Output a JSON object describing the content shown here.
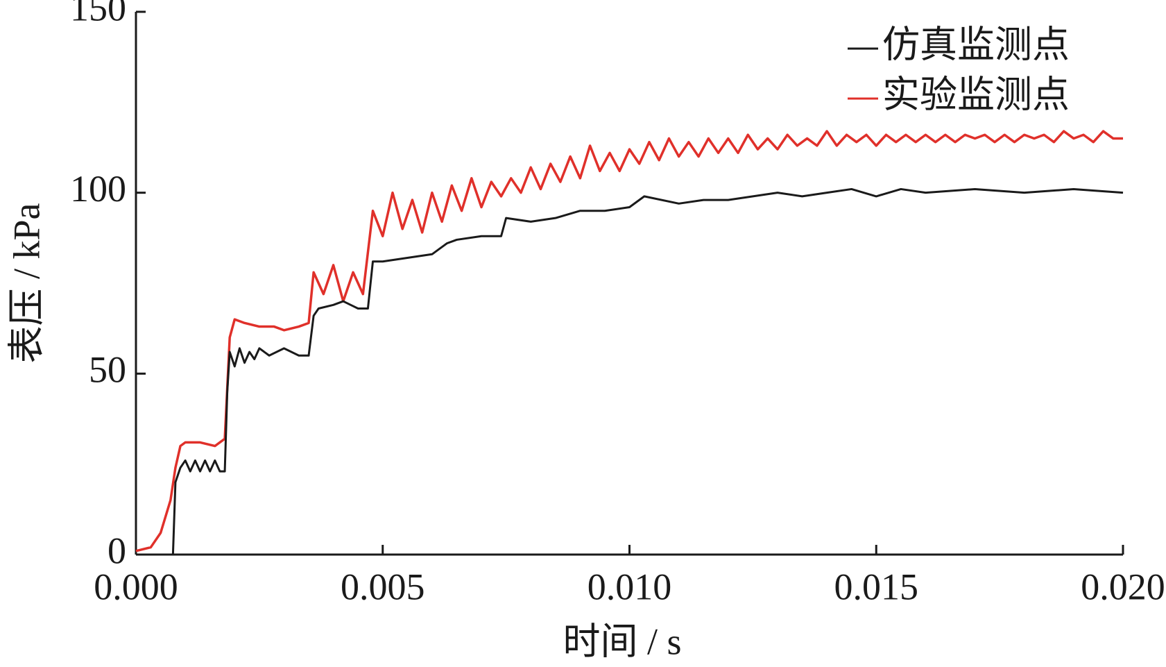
{
  "chart_data": {
    "type": "line",
    "xlabel": "时间 / s",
    "ylabel": "表压 / kPa",
    "xlim": [
      0,
      0.02
    ],
    "ylim": [
      0,
      150
    ],
    "xticks": [
      {
        "value": 0,
        "label": "0.000"
      },
      {
        "value": 0.005,
        "label": "0.005"
      },
      {
        "value": 0.01,
        "label": "0.010"
      },
      {
        "value": 0.015,
        "label": "0.015"
      },
      {
        "value": 0.02,
        "label": "0.020"
      }
    ],
    "yticks": [
      0,
      50,
      100,
      150
    ],
    "legend": "upper right",
    "series": [
      {
        "name": "仿真监测点",
        "color": "#1a1a1a",
        "x": [
          0,
          0.00075,
          0.0008,
          0.0009,
          0.001,
          0.0011,
          0.0012,
          0.0013,
          0.0014,
          0.0015,
          0.0016,
          0.0017,
          0.0018,
          0.00185,
          0.0019,
          0.002,
          0.0021,
          0.0022,
          0.0023,
          0.0024,
          0.0025,
          0.0027,
          0.003,
          0.0033,
          0.0035,
          0.0036,
          0.0037,
          0.004,
          0.0042,
          0.0045,
          0.0047,
          0.0048,
          0.005,
          0.0055,
          0.006,
          0.0063,
          0.0065,
          0.007,
          0.0074,
          0.0075,
          0.008,
          0.0085,
          0.009,
          0.0095,
          0.01,
          0.0103,
          0.011,
          0.0115,
          0.012,
          0.0125,
          0.013,
          0.0135,
          0.014,
          0.0145,
          0.015,
          0.0155,
          0.016,
          0.017,
          0.018,
          0.019,
          0.02
        ],
        "values": [
          0,
          0,
          20,
          24,
          26,
          23,
          26,
          23,
          26,
          23,
          26,
          23,
          23,
          45,
          56,
          52,
          57,
          53,
          56,
          54,
          57,
          55,
          57,
          55,
          55,
          66,
          68,
          69,
          70,
          68,
          68,
          81,
          81,
          82,
          83,
          86,
          87,
          88,
          88,
          93,
          92,
          93,
          95,
          95,
          96,
          99,
          97,
          98,
          98,
          99,
          100,
          99,
          100,
          101,
          99,
          101,
          100,
          101,
          100,
          101,
          100
        ]
      },
      {
        "name": "实验监测点",
        "color": "#e0302a",
        "x": [
          0,
          0.0003,
          0.0005,
          0.0007,
          0.0008,
          0.0009,
          0.001,
          0.0013,
          0.0016,
          0.0018,
          0.0019,
          0.002,
          0.0022,
          0.0025,
          0.0028,
          0.003,
          0.0033,
          0.0035,
          0.0036,
          0.0038,
          0.004,
          0.0042,
          0.0044,
          0.0046,
          0.0048,
          0.005,
          0.0052,
          0.0054,
          0.0056,
          0.0058,
          0.006,
          0.0062,
          0.0064,
          0.0066,
          0.0068,
          0.007,
          0.0072,
          0.0074,
          0.0076,
          0.0078,
          0.008,
          0.0082,
          0.0084,
          0.0086,
          0.0088,
          0.009,
          0.0092,
          0.0094,
          0.0096,
          0.0098,
          0.01,
          0.0102,
          0.0104,
          0.0106,
          0.0108,
          0.011,
          0.0112,
          0.0114,
          0.0116,
          0.0118,
          0.012,
          0.0122,
          0.0124,
          0.0126,
          0.0128,
          0.013,
          0.0132,
          0.0134,
          0.0136,
          0.0138,
          0.014,
          0.0142,
          0.0144,
          0.0146,
          0.0148,
          0.015,
          0.0152,
          0.0154,
          0.0156,
          0.0158,
          0.016,
          0.0162,
          0.0164,
          0.0166,
          0.0168,
          0.017,
          0.0172,
          0.0174,
          0.0176,
          0.0178,
          0.018,
          0.0182,
          0.0184,
          0.0186,
          0.0188,
          0.019,
          0.0192,
          0.0194,
          0.0196,
          0.0198,
          0.02
        ],
        "values": [
          1,
          2,
          6,
          15,
          24,
          30,
          31,
          31,
          30,
          32,
          60,
          65,
          64,
          63,
          63,
          62,
          63,
          64,
          78,
          72,
          80,
          70,
          78,
          72,
          95,
          88,
          100,
          90,
          98,
          89,
          100,
          92,
          102,
          95,
          104,
          96,
          103,
          99,
          104,
          100,
          107,
          101,
          108,
          103,
          110,
          104,
          113,
          106,
          111,
          106,
          112,
          108,
          114,
          109,
          115,
          110,
          114,
          110,
          115,
          111,
          115,
          111,
          116,
          112,
          115,
          112,
          116,
          113,
          115,
          113,
          117,
          113,
          116,
          114,
          116,
          113,
          116,
          114,
          116,
          114,
          116,
          114,
          116,
          114,
          116,
          115,
          116,
          114,
          116,
          114,
          116,
          115,
          116,
          114,
          117,
          115,
          116,
          114,
          117,
          115,
          115
        ]
      }
    ]
  }
}
